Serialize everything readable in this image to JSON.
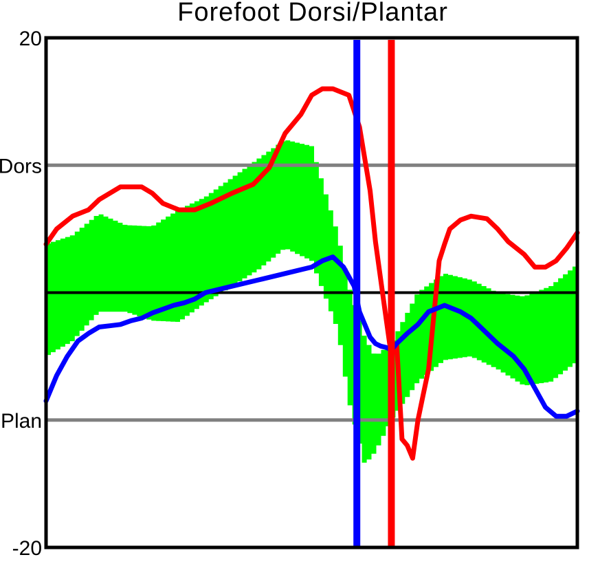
{
  "chart_data": {
    "type": "line",
    "title": "Forefoot  Dorsi/Plantar",
    "xlabel": "",
    "ylabel": "",
    "xlim": [
      0,
      100
    ],
    "ylim": [
      -20,
      20
    ],
    "grid": false,
    "y_ticks": [
      {
        "value": 20,
        "label": "20"
      },
      {
        "value": 10,
        "label": "Dors"
      },
      {
        "value": -10,
        "label": "Plan"
      },
      {
        "value": -20,
        "label": "-20"
      }
    ],
    "reference_lines": [
      {
        "y": 10,
        "color": "#808080"
      },
      {
        "y": 0,
        "color": "#000000"
      },
      {
        "y": -10,
        "color": "#808080"
      }
    ],
    "vertical_lines": [
      {
        "x": 58.5,
        "color": "#0000ff"
      },
      {
        "x": 65.0,
        "color": "#ff0000"
      }
    ],
    "normal_band": {
      "color": "#00ff00",
      "x": [
        0,
        5,
        10,
        15,
        20,
        25,
        30,
        35,
        40,
        45,
        50,
        55,
        57,
        60,
        62,
        65,
        70,
        75,
        80,
        85,
        90,
        95,
        100
      ],
      "upper": [
        3.8,
        4.5,
        6.2,
        5.3,
        5.2,
        6.5,
        7.5,
        9.0,
        10.5,
        12.0,
        11.5,
        4.5,
        0.5,
        -3.5,
        -5.0,
        -4.0,
        0.0,
        1.5,
        1.0,
        0.0,
        -0.3,
        0.5,
        2.2
      ],
      "lower": [
        -5.0,
        -3.8,
        -1.5,
        -1.5,
        -2.2,
        -2.3,
        -0.8,
        0.5,
        1.8,
        3.5,
        2.5,
        -3.0,
        -8.5,
        -13.5,
        -12.5,
        -10.0,
        -7.0,
        -5.3,
        -5.0,
        -6.0,
        -7.3,
        -7.0,
        -5.4
      ]
    },
    "series": [
      {
        "color": "#ff0000",
        "x": [
          0,
          2,
          5,
          8,
          10,
          14,
          18,
          20,
          22,
          25,
          28,
          31,
          35,
          39,
          42,
          45,
          48,
          50,
          52,
          54,
          57,
          59,
          61,
          62,
          64,
          65,
          66,
          67,
          68,
          69,
          70,
          71,
          72,
          74,
          75,
          76,
          78,
          80,
          83,
          85,
          87,
          90,
          92,
          94,
          96,
          98,
          100
        ],
        "y": [
          3.8,
          5.0,
          6.0,
          6.5,
          7.3,
          8.3,
          8.3,
          7.8,
          7.0,
          6.5,
          6.5,
          7.0,
          7.8,
          8.5,
          9.8,
          12.5,
          14.0,
          15.5,
          16.0,
          16.0,
          15.5,
          13.0,
          8.0,
          4.0,
          -2.0,
          -5.0,
          -4.0,
          -11.5,
          -12.0,
          -13.0,
          -10.0,
          -8.0,
          -6.0,
          2.5,
          3.8,
          5.0,
          5.7,
          6.0,
          5.8,
          5.0,
          4.0,
          3.0,
          2.0,
          2.0,
          2.5,
          3.5,
          4.7
        ]
      },
      {
        "color": "#0000ff",
        "x": [
          0,
          2,
          4,
          6,
          8,
          10,
          12,
          14,
          16,
          18,
          20,
          22,
          24,
          26,
          28,
          30,
          35,
          40,
          45,
          50,
          52,
          54,
          56,
          58,
          59,
          60,
          61,
          62,
          63,
          64,
          65,
          66,
          68,
          70,
          72,
          75,
          78,
          80,
          82,
          85,
          88,
          90,
          92,
          94,
          96,
          98,
          100
        ],
        "y": [
          -8.5,
          -6.5,
          -5.0,
          -3.8,
          -3.2,
          -2.7,
          -2.6,
          -2.5,
          -2.2,
          -2.0,
          -1.6,
          -1.3,
          -1.0,
          -0.8,
          -0.5,
          0.0,
          0.5,
          1.0,
          1.5,
          2.0,
          2.5,
          2.8,
          2.0,
          0.5,
          -1.5,
          -2.5,
          -3.5,
          -4.0,
          -4.2,
          -4.3,
          -4.5,
          -4.0,
          -3.2,
          -2.5,
          -1.5,
          -1.0,
          -1.5,
          -2.0,
          -2.8,
          -4.0,
          -5.0,
          -6.0,
          -7.5,
          -9.0,
          -9.7,
          -9.7,
          -9.3
        ]
      }
    ]
  }
}
